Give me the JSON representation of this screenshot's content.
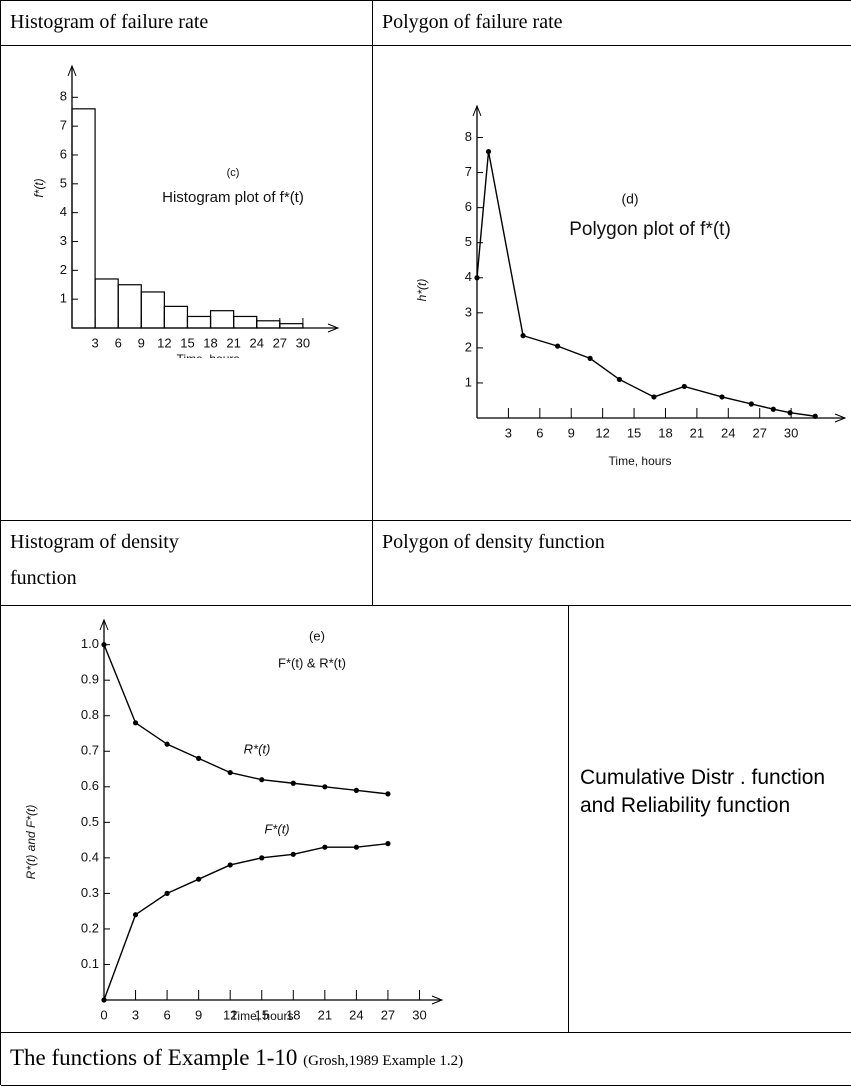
{
  "table": {
    "rows": [
      [
        "Histogram of failure rate",
        "Polygon of failure rate"
      ],
      [
        "Histogram of density function",
        "Polygon of density function"
      ],
      [
        "Cumulative  Distr . function  and Reliability function"
      ]
    ],
    "caption": {
      "main": "The functions of  Example 1-10",
      "source": "(Grosh,1989  Example 1.2)"
    }
  },
  "chart_data": [
    {
      "type": "histogram",
      "annotations": [
        "(c)",
        "Histogram plot of f*(t)"
      ],
      "y_label": "f*(t)",
      "x_label": "Time. hours",
      "bins": [
        0,
        3,
        6,
        9,
        12,
        15,
        18,
        21,
        24,
        27,
        30
      ],
      "values": [
        7.6,
        1.7,
        1.5,
        1.25,
        0.75,
        0.4,
        0.6,
        0.4,
        0.25,
        0.15
      ],
      "xlim": [
        0,
        33
      ],
      "ylim": [
        0,
        8.6
      ],
      "xticks": [
        3,
        6,
        9,
        12,
        15,
        18,
        21,
        24,
        27,
        30
      ],
      "yticks": [
        1,
        2,
        3,
        4,
        5,
        6,
        7,
        8
      ],
      "color": "#000000"
    },
    {
      "type": "line",
      "annotations": [
        "(d)",
        "Polygon plot of f*(t)"
      ],
      "y_label": "h*(t)",
      "x_label": "Time, hours",
      "x": [
        0,
        1.1,
        4.4,
        7.7,
        10.8,
        13.6,
        16.9,
        19.8,
        23.4,
        26.2,
        28.3,
        29.9,
        32.3
      ],
      "values": [
        4.0,
        7.6,
        2.35,
        2.05,
        1.7,
        1.1,
        0.6,
        0.9,
        0.6,
        0.4,
        0.25,
        0.15,
        0.05
      ],
      "xlim": [
        0,
        34
      ],
      "ylim": [
        0,
        8.5
      ],
      "xticks": [
        3,
        6,
        9,
        12,
        15,
        18,
        21,
        24,
        27,
        30
      ],
      "yticks": [
        1,
        2,
        3,
        4,
        5,
        6,
        7,
        8
      ],
      "color": "#000000"
    },
    {
      "type": "line",
      "annotations": [
        "(e)",
        "F*(t) & R*(t)"
      ],
      "y_label": "R*(t) and F*(t)",
      "x_label": "Time, hours",
      "x": [
        0,
        3,
        6,
        9,
        12,
        15,
        18,
        21,
        24,
        27
      ],
      "series": [
        {
          "name": "R*(t)",
          "color": "#000000",
          "values": [
            1.0,
            0.78,
            0.72,
            0.68,
            0.64,
            0.62,
            0.61,
            0.6,
            0.59,
            0.58
          ]
        },
        {
          "name": "F*(t)",
          "color": "#000000",
          "values": [
            0,
            0.24,
            0.3,
            0.34,
            0.38,
            0.4,
            0.41,
            0.43,
            0.43,
            0.44
          ]
        }
      ],
      "xlim": [
        0,
        31
      ],
      "ylim": [
        0,
        1.03
      ],
      "xticks": [
        0,
        3,
        6,
        9,
        12,
        15,
        18,
        21,
        24,
        27,
        30
      ],
      "yticks": [
        0.1,
        0.2,
        0.3,
        0.4,
        0.5,
        0.6,
        0.7,
        0.8,
        0.9,
        {
          "value": 1,
          "label": "1.0"
        }
      ]
    }
  ]
}
